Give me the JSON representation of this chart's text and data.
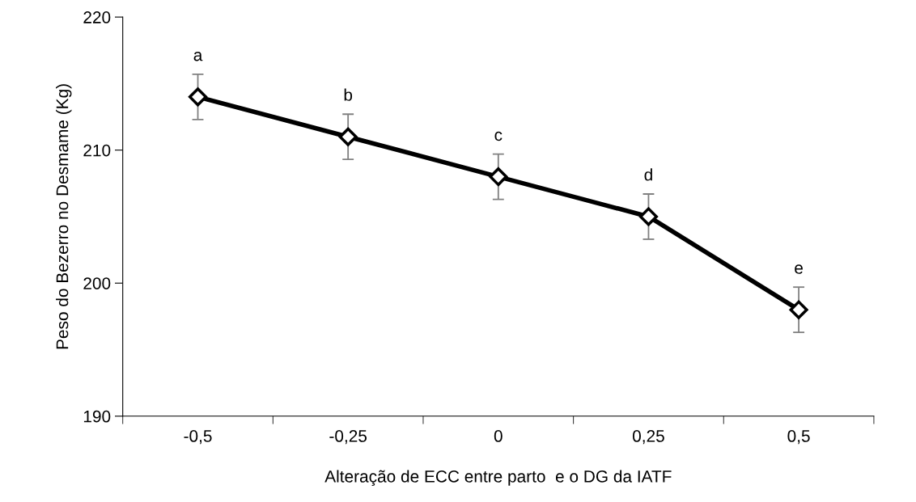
{
  "chart_data": {
    "type": "line",
    "xlabel": "Alteração de ECC entre parto  e o DG da IATF",
    "ylabel": "Peso do Bezerro no Desmame (Kg)",
    "categories": [
      "-0,5",
      "-0,25",
      "0",
      "0,25",
      "0,5"
    ],
    "series": [
      {
        "color": "#000000",
        "values": [
          214,
          211,
          208,
          205,
          198
        ],
        "errors": [
          1.7,
          1.7,
          1.7,
          1.7,
          1.7
        ]
      }
    ],
    "ylim": [
      190,
      220
    ],
    "yticks": [
      190,
      200,
      210,
      220
    ],
    "marker": "diamond",
    "line_style": "solid",
    "grid": false,
    "legend": false,
    "annotations": [
      {
        "text": "a",
        "x": "-0,5",
        "y": 214
      },
      {
        "text": "b",
        "x": "-0,25",
        "y": 211
      },
      {
        "text": "c",
        "x": "0",
        "y": 208
      },
      {
        "text": "d",
        "x": "0,25",
        "y": 205
      },
      {
        "text": "e",
        "x": "0,5",
        "y": 198
      }
    ]
  }
}
